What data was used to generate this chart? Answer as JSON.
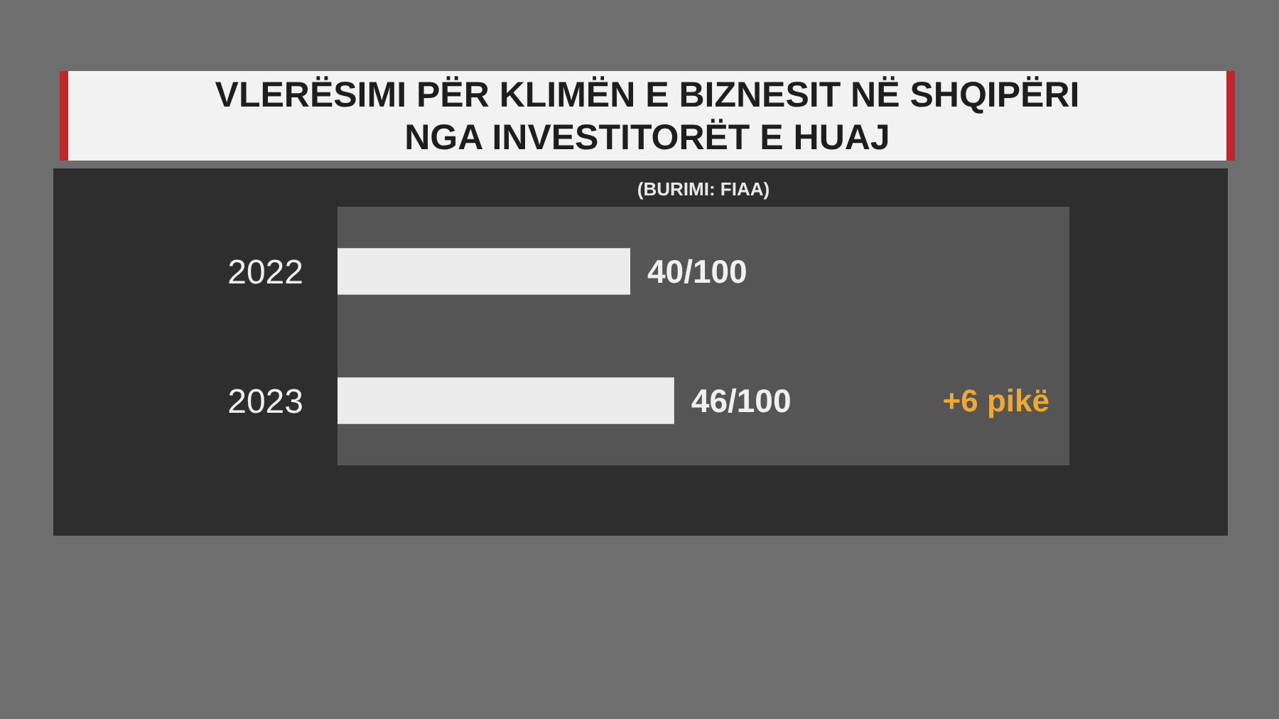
{
  "chart_data": {
    "type": "bar",
    "orientation": "horizontal",
    "title": "VLERËSIMI PËR KLIMËN E BIZNESIT NË SHQIPËRI\nNGA INVESTITORËT E HUAJ",
    "annotations": [
      "(BURIMI: FIAA)",
      "+6 pikë"
    ],
    "categories": [
      "2022",
      "2023"
    ],
    "values": [
      40,
      46
    ],
    "color": "#ececec",
    "value_labels": [
      "40/100",
      "46/100"
    ],
    "xlim": [
      0,
      100
    ],
    "tick_labels": "y",
    "grid": false
  }
}
